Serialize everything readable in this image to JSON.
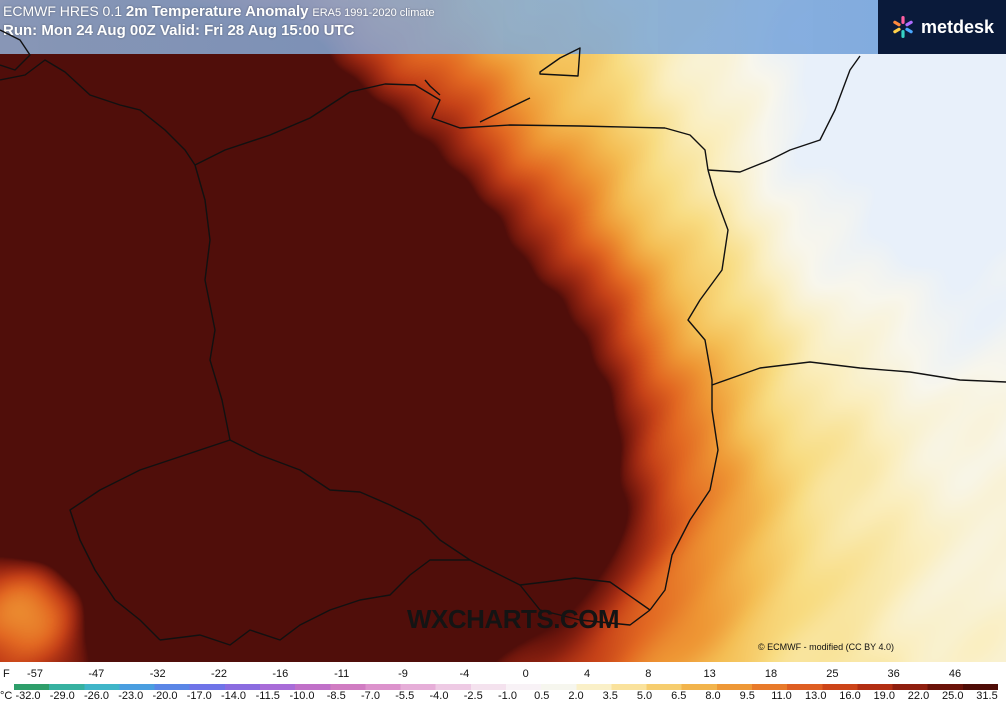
{
  "header": {
    "model": "ECMWF HRES 0.1",
    "product": "2m Temperature Anomaly",
    "climate": "ERA5 1991-2020 climate",
    "run_line": "Run: Mon 24 Aug 00Z Valid: Fri 28 Aug 15:00 UTC"
  },
  "logo": {
    "text": "metdesk",
    "icon": "metdesk-star-icon"
  },
  "watermark": "WXCHARTS.COM",
  "credit": "© ECMWF - modified (CC BY 4.0)",
  "legend": {
    "unit_f": "F",
    "unit_c": "°C",
    "f_ticks": [
      "-57",
      "-47",
      "-32",
      "-22",
      "-16",
      "-11",
      "-9",
      "-4",
      "0",
      "4",
      "8",
      "13",
      "18",
      "25",
      "36",
      "46"
    ],
    "c_ticks": [
      "-32.0",
      "-29.0",
      "-26.0",
      "-23.0",
      "-20.0",
      "-17.0",
      "-14.0",
      "-11.5",
      "-10.0",
      "-8.5",
      "-7.0",
      "-5.5",
      "-4.0",
      "-2.5",
      "-1.0",
      "0.5",
      "2.0",
      "3.5",
      "5.0",
      "6.5",
      "8.0",
      "9.5",
      "11.0",
      "13.0",
      "16.0",
      "19.0",
      "22.0",
      "25.0",
      "31.5"
    ],
    "colors": [
      "#2e9e6a",
      "#36b1a0",
      "#3fb5c8",
      "#4a9ee0",
      "#5a86e6",
      "#6f74e8",
      "#8a6ce0",
      "#a86cd8",
      "#c070c8",
      "#d07cc2",
      "#dc92cc",
      "#e6aed8",
      "#eecae4",
      "#f4e2ee",
      "#f8f2f6",
      "#f6f6ee",
      "#faf0c8",
      "#fae29c",
      "#f6cd6e",
      "#f2b44c",
      "#ee9836",
      "#e87a2a",
      "#de5e22",
      "#cc4418",
      "#b22e12",
      "#8e1e0e",
      "#6a1208",
      "#4e0c06"
    ]
  },
  "map": {
    "region": "Poland and surroundings",
    "anomaly_pattern": "strong warm anomaly over western Poland, Czechia and eastern Germany; weaker warmth east"
  }
}
